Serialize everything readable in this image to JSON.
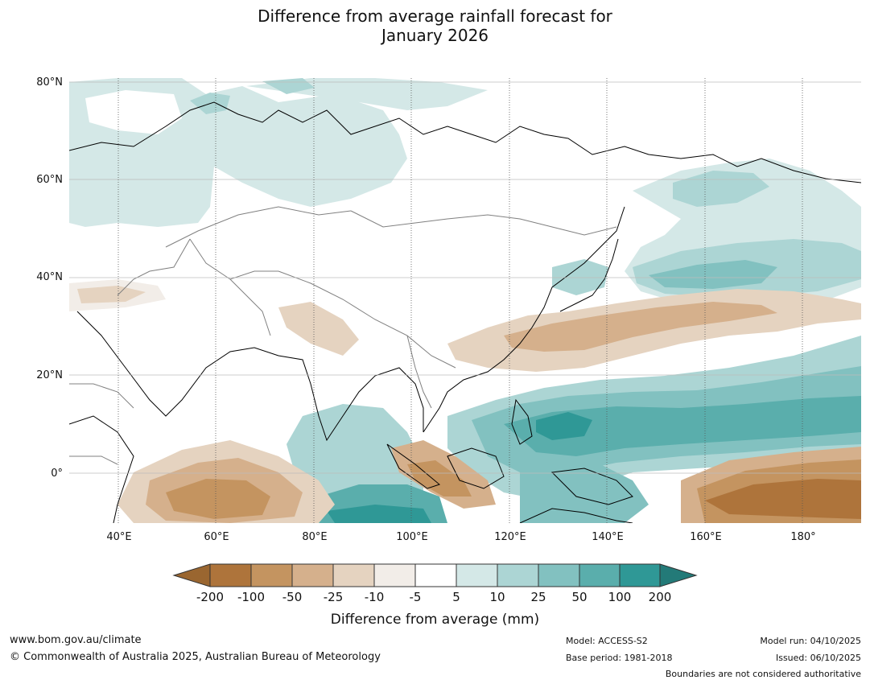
{
  "title_line1": "Difference from average rainfall forecast for",
  "title_line2": "January 2026",
  "map": {
    "lat_labels": [
      "80°N",
      "60°N",
      "40°N",
      "20°N",
      "0°"
    ],
    "lon_labels": [
      "40°E",
      "60°E",
      "80°E",
      "100°E",
      "120°E",
      "140°E",
      "160°E",
      "180°"
    ],
    "extent": {
      "lon_min": 30,
      "lon_max": 192,
      "lat_min": -10,
      "lat_max": 81
    }
  },
  "colorbar": {
    "title": "Difference from average (mm)",
    "tick_labels": [
      "-200",
      "-100",
      "-50",
      "-25",
      "-10",
      "-5",
      "5",
      "10",
      "25",
      "50",
      "100",
      "200"
    ],
    "colors": [
      "#9a6630",
      "#ae743b",
      "#c49460",
      "#d5b08c",
      "#e5d3c0",
      "#f2ede8",
      "#ffffff",
      "#d4e8e7",
      "#acd5d4",
      "#82c1c0",
      "#5aaeac",
      "#2f9896",
      "#237a78"
    ]
  },
  "footer": {
    "website": "www.bom.gov.au/climate",
    "copyright": "© Commonwealth of Australia 2025, Australian Bureau of Meteorology",
    "model": "Model: ACCESS-S2",
    "base_period": "Base period: 1981-2018",
    "model_run": "Model run: 04/10/2025",
    "issued": "Issued: 06/10/2025",
    "disclaimer": "Boundaries are not considered authoritative"
  }
}
